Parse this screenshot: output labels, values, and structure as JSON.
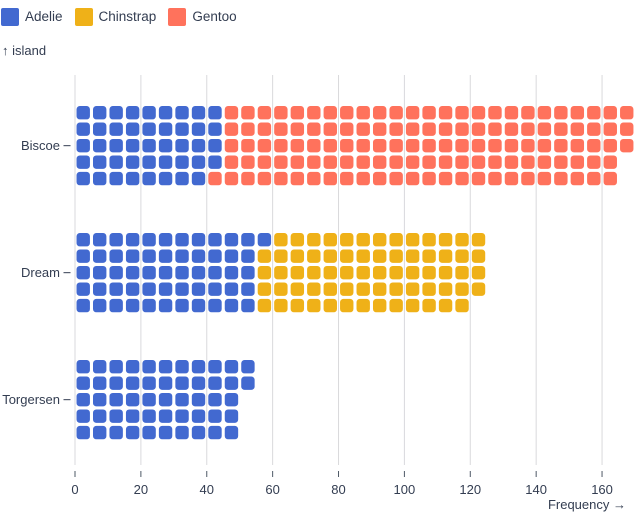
{
  "chart_data": {
    "type": "waffle",
    "description": "Unit (waffle) chart of penguin frequency by island, stacked by species; each rounded cell = 1 penguin, 5 cells per column",
    "legend": [
      {
        "label": "Adelie",
        "color": "#4269d0"
      },
      {
        "label": "Chinstrap",
        "color": "#efb118"
      },
      {
        "label": "Gentoo",
        "color": "#ff725c"
      }
    ],
    "colors": {
      "Adelie": "#4269d0",
      "Chinstrap": "#efb118",
      "Gentoo": "#ff725c"
    },
    "y_axis": {
      "label": "↑ island",
      "categories": [
        "Biscoe",
        "Dream",
        "Torgersen"
      ]
    },
    "x_axis": {
      "label": "Frequency →",
      "ticks": [
        0,
        20,
        40,
        60,
        80,
        100,
        120,
        140,
        160
      ],
      "min": 0,
      "max": 170,
      "grid": true
    },
    "unit_per_cell": 1,
    "cells_per_column": 5,
    "fill_order": "left-to-right, top-to-bottom within each column",
    "series": [
      {
        "island": "Biscoe",
        "total": 168,
        "segments": [
          {
            "species": "Adelie",
            "count": 44
          },
          {
            "species": "Gentoo",
            "count": 124
          }
        ]
      },
      {
        "island": "Dream",
        "total": 124,
        "segments": [
          {
            "species": "Adelie",
            "count": 56
          },
          {
            "species": "Chinstrap",
            "count": 68
          }
        ]
      },
      {
        "island": "Torgersen",
        "total": 52,
        "segments": [
          {
            "species": "Adelie",
            "count": 52
          }
        ]
      }
    ]
  },
  "style": {
    "text_color": "#333d51",
    "gridline_color": "#d9d9dc",
    "tick_color": "#4e5866",
    "background": "#ffffff"
  }
}
